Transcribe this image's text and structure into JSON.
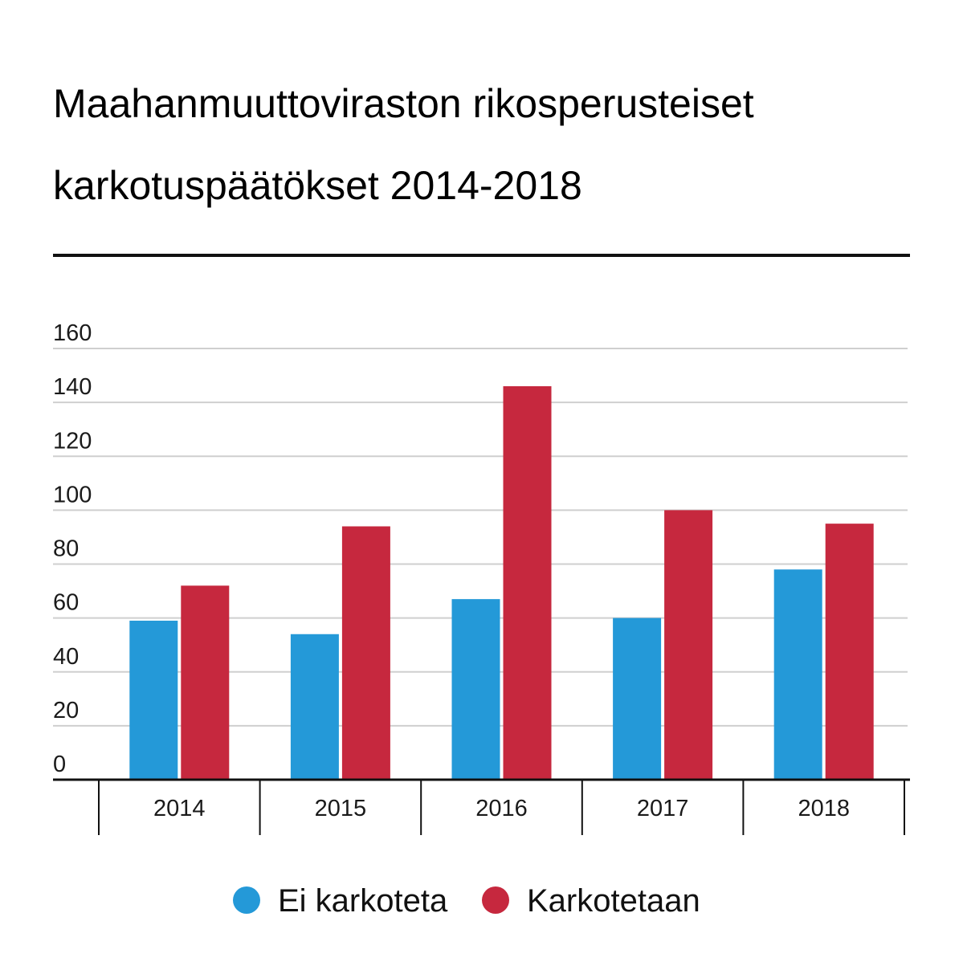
{
  "chart_data": {
    "type": "bar",
    "title_lines": [
      "Maahanmuuttoviraston rikosperusteiset",
      "karkotuspäätökset 2014-2018"
    ],
    "categories": [
      "2014",
      "2015",
      "2016",
      "2017",
      "2018"
    ],
    "series": [
      {
        "name": "Ei karkoteta",
        "color": "#2499d8",
        "values": [
          59,
          54,
          67,
          60,
          78
        ]
      },
      {
        "name": "Karkotetaan",
        "color": "#c6283e",
        "values": [
          72,
          94,
          146,
          100,
          95
        ]
      }
    ],
    "ylim": [
      0,
      160
    ],
    "yticks": [
      0,
      20,
      40,
      60,
      80,
      100,
      120,
      140,
      160
    ],
    "grid": true,
    "legend_position": "bottom"
  }
}
